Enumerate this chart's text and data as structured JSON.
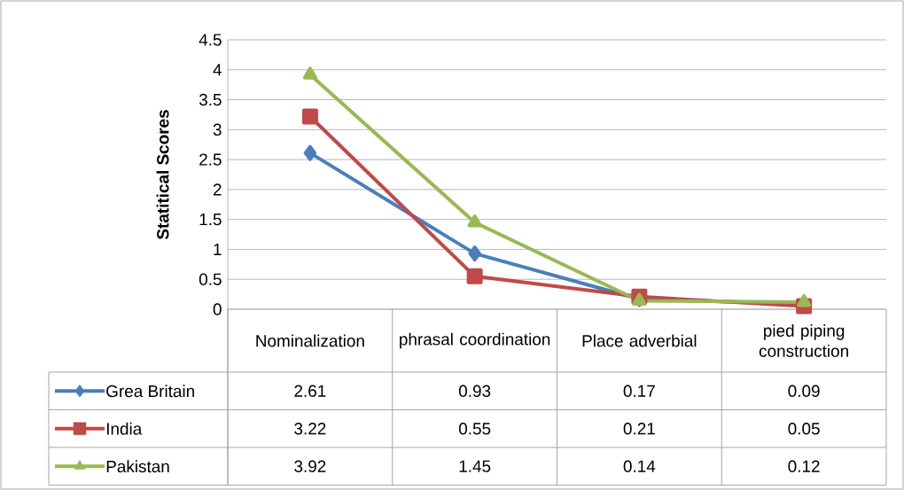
{
  "chart_data": {
    "type": "line",
    "ylabel": "Statitical Scores",
    "categories": [
      "Nominalization",
      "phrasal coordination",
      "Place adverbial",
      "pied piping construction"
    ],
    "series": [
      {
        "name": "Grea Britain",
        "color": "#4a7ebb",
        "marker": "diamond",
        "values": [
          2.61,
          0.93,
          0.17,
          0.09
        ]
      },
      {
        "name": "India",
        "color": "#be4b48",
        "marker": "square",
        "values": [
          3.22,
          0.55,
          0.21,
          0.05
        ]
      },
      {
        "name": "Pakistan",
        "color": "#98b954",
        "marker": "triangle",
        "values": [
          3.92,
          1.45,
          0.14,
          0.12
        ]
      }
    ],
    "ylim": [
      0,
      4.5
    ],
    "yticks": [
      0,
      0.5,
      1,
      1.5,
      2,
      2.5,
      3,
      3.5,
      4,
      4.5
    ],
    "grid": "y",
    "legend": "bottom",
    "data_labels": true
  }
}
